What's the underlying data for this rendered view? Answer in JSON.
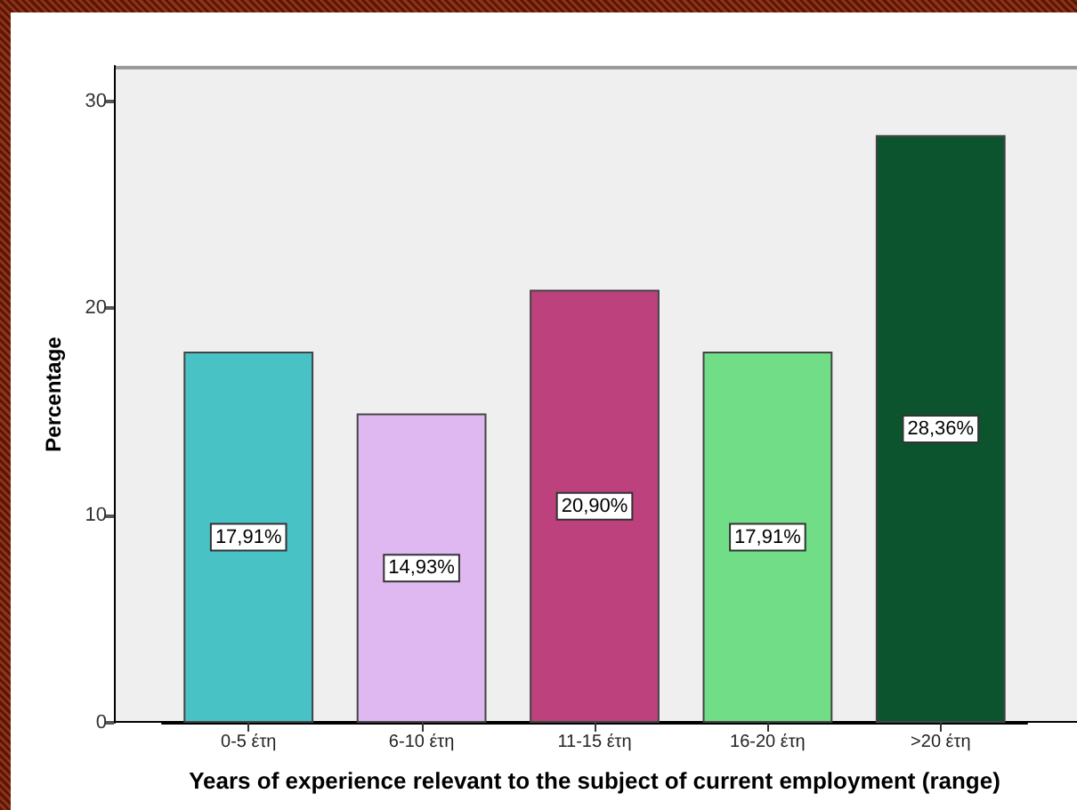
{
  "chart_data": {
    "type": "bar",
    "xlabel": "Years of experience relevant to the subject of current employment (range)",
    "ylabel": "Percentage",
    "categories": [
      "0-5 έτη",
      "6-10 έτη",
      "11-15 έτη",
      "16-20 έτη",
      ">20 έτη"
    ],
    "values": [
      17.91,
      14.93,
      20.9,
      17.91,
      28.36
    ],
    "value_labels": [
      "17,91%",
      "14,93%",
      "20,90%",
      "17,91%",
      "28,36%"
    ],
    "colors": [
      "#48c2c5",
      "#dfb8f1",
      "#bc417c",
      "#71dd86",
      "#0b542e"
    ],
    "ylim": [
      0,
      31.7
    ],
    "yticks": [
      0,
      10,
      20,
      30
    ]
  }
}
